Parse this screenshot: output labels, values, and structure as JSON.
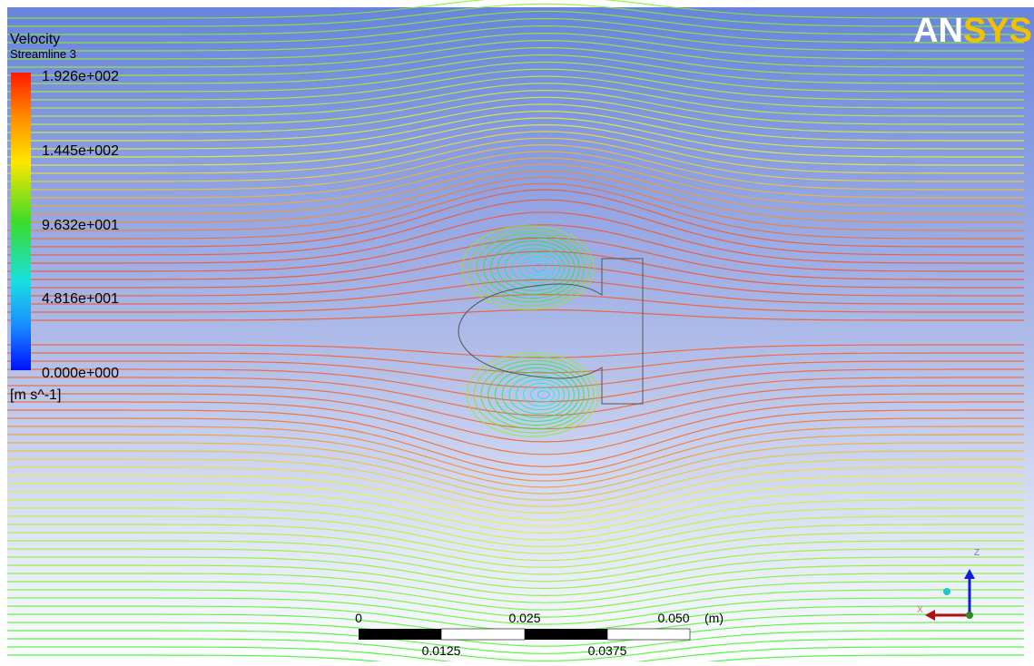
{
  "legend": {
    "title": "Velocity",
    "subtitle": "Streamline 3",
    "labels": [
      "1.926e+002",
      "1.445e+002",
      "9.632e+001",
      "4.816e+001",
      "0.000e+000"
    ],
    "unit": "[m s^-1]"
  },
  "logo": {
    "left": "AN",
    "right": "SYS"
  },
  "scale_bar": {
    "top_labels": [
      "0",
      "0.025",
      "0.050"
    ],
    "unit": "(m)",
    "bottom_labels": [
      "0.0125",
      "0.0375"
    ]
  },
  "triad": {
    "up": "Z",
    "left": "X"
  }
}
